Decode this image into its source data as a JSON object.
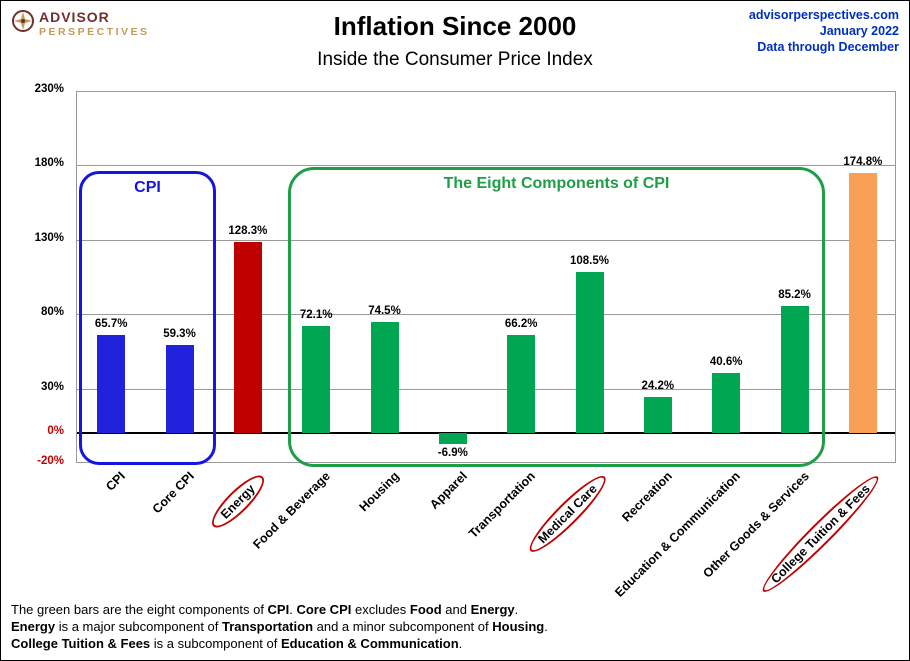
{
  "header": {
    "logo_line1": "ADVISOR",
    "logo_line2": "PERSPECTIVES",
    "title": "Inflation Since 2000",
    "subtitle": "Inside the Consumer Price Index",
    "source_site": "advisorperspectives.com",
    "source_date": "January 2022",
    "source_note": "Data through December"
  },
  "chart_data": {
    "type": "bar",
    "title": "Inflation Since 2000",
    "subtitle": "Inside the Consumer Price Index",
    "xlabel": "",
    "ylabel": "",
    "ylim": [
      -20,
      230
    ],
    "yticks": [
      230,
      180,
      130,
      80,
      30,
      0,
      -20
    ],
    "grid": true,
    "legend": "none",
    "categories": [
      "CPI",
      "Core CPI",
      "Energy",
      "Food & Beverage",
      "Housing",
      "Apparel",
      "Transportation",
      "Medical Care",
      "Recreation",
      "Education & Communication",
      "Other Goods & Services",
      "College Tuition & Fees"
    ],
    "values": [
      65.7,
      59.3,
      128.3,
      72.1,
      74.5,
      -6.9,
      66.2,
      108.5,
      24.2,
      40.6,
      85.2,
      174.8
    ],
    "value_labels": [
      "65.7%",
      "59.3%",
      "128.3%",
      "72.1%",
      "74.5%",
      "-6.9%",
      "66.2%",
      "108.5%",
      "24.2%",
      "40.6%",
      "85.2%",
      "174.8%"
    ],
    "bar_colors": [
      "#2222dd",
      "#2222dd",
      "#c00000",
      "#00a651",
      "#00a651",
      "#00a651",
      "#00a651",
      "#00a651",
      "#00a651",
      "#00a651",
      "#00a651",
      "#f8a055"
    ],
    "circled_labels": [
      "Energy",
      "Medical Care",
      "College Tuition & Fees"
    ],
    "annotations": {
      "cpi_box_label": "CPI",
      "components_box_label": "The Eight Components of CPI"
    }
  },
  "footnote": {
    "lines": [
      [
        {
          "t": "The green bars are the eight components of "
        },
        {
          "t": "CPI",
          "b": true
        },
        {
          "t": ". "
        },
        {
          "t": "Core CPI",
          "b": true
        },
        {
          "t": " excludes "
        },
        {
          "t": "Food",
          "b": true
        },
        {
          "t": " and "
        },
        {
          "t": "Energy",
          "b": true
        },
        {
          "t": "."
        }
      ],
      [
        {
          "t": "Energy",
          "b": true
        },
        {
          "t": " is a major subcomponent of "
        },
        {
          "t": "Transportation",
          "b": true
        },
        {
          "t": " and a minor subcomponent of "
        },
        {
          "t": "Housing",
          "b": true
        },
        {
          "t": "."
        }
      ],
      [
        {
          "t": "College Tuition & Fees",
          "b": true
        },
        {
          "t": " is a subcomponent of "
        },
        {
          "t": "Education & Communication",
          "b": true
        },
        {
          "t": "."
        }
      ]
    ]
  },
  "colors": {
    "cpi_blue": "#2222dd",
    "energy_red": "#c00000",
    "component_green": "#00a651",
    "college_orange": "#f8a055",
    "annotation_blue": "#1515e0",
    "annotation_green": "#1e9e46",
    "circle_red": "#c00000",
    "negative_tick_red": "#c00000",
    "source_text_blue": "#0030c0",
    "logo_maroon": "#722f2f",
    "logo_gold": "#c49a58"
  }
}
